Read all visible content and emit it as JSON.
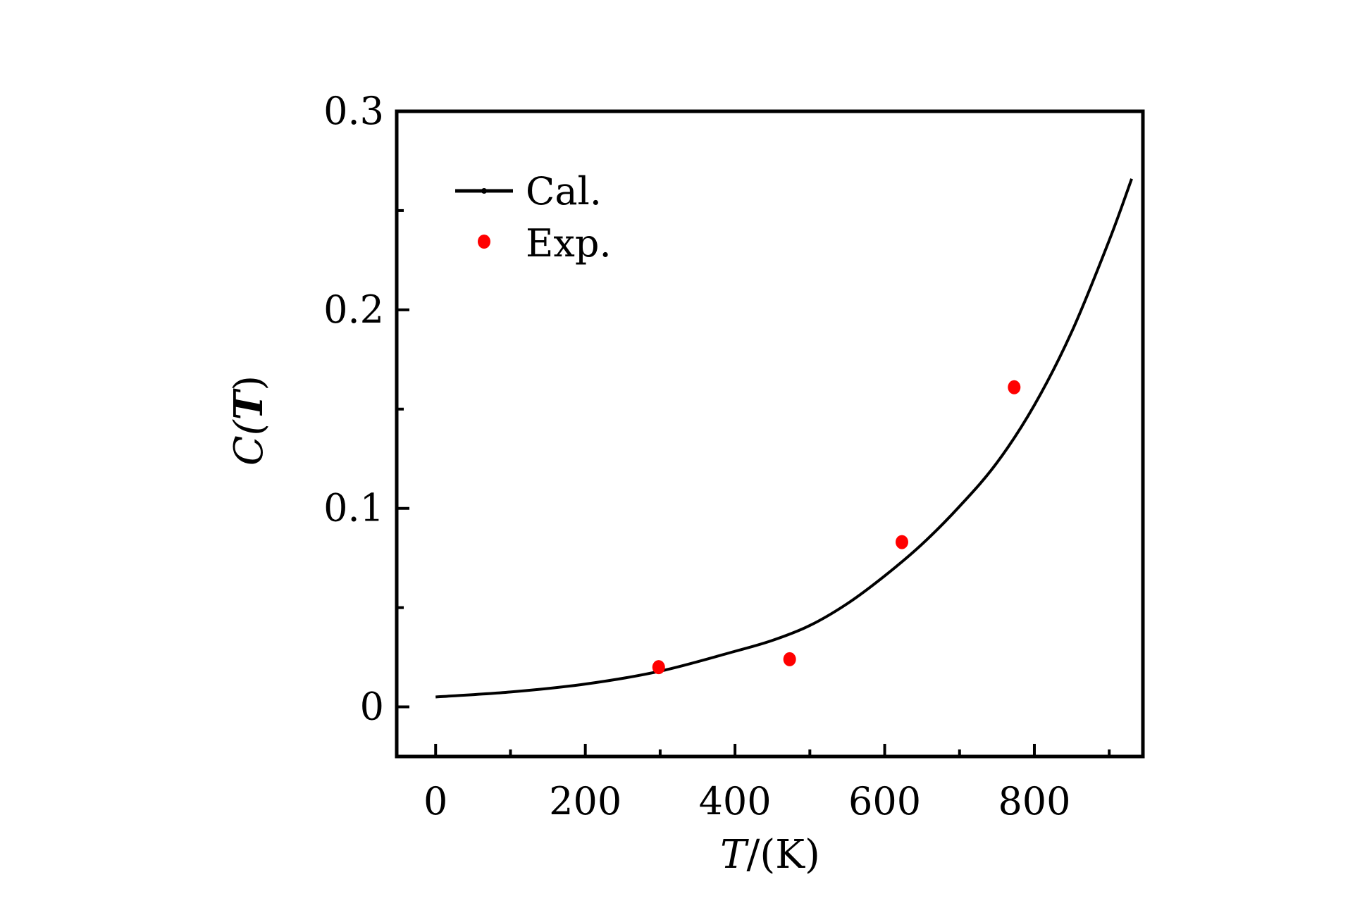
{
  "chart_data": {
    "type": "line",
    "title": "",
    "xlabel": {
      "var": "T",
      "unit": "/(K)"
    },
    "ylabel": {
      "prefix": "C(",
      "var": "T",
      "suffix": ")"
    },
    "xlim": [
      -52,
      945
    ],
    "ylim": [
      -0.025,
      0.3
    ],
    "x_ticks": [
      0,
      200,
      400,
      600,
      800
    ],
    "x_tick_labels": [
      "0",
      "200",
      "400",
      "600",
      "800"
    ],
    "x_minor_ticks": [
      100,
      300,
      500,
      700,
      900
    ],
    "y_ticks": [
      0,
      0.1,
      0.2,
      0.3
    ],
    "y_tick_labels": [
      "0",
      "0.1",
      "0.2",
      "0.3"
    ],
    "y_minor_ticks": [
      0.05,
      0.15,
      0.25
    ],
    "grid": false,
    "legend_position": "top-left",
    "series": [
      {
        "name": "Cal.",
        "type": "line",
        "color": "#000000",
        "x": [
          0,
          100,
          200,
          300,
          400,
          450,
          500,
          550,
          600,
          650,
          700,
          750,
          800,
          850,
          900,
          930
        ],
        "y": [
          0.005,
          0.0075,
          0.0115,
          0.018,
          0.028,
          0.0335,
          0.041,
          0.052,
          0.066,
          0.082,
          0.101,
          0.123,
          0.152,
          0.189,
          0.235,
          0.266
        ]
      },
      {
        "name": "Exp.",
        "type": "scatter",
        "color": "#ff0000",
        "x": [
          298,
          473,
          623,
          773
        ],
        "y": [
          0.02,
          0.024,
          0.083,
          0.161
        ]
      }
    ]
  }
}
